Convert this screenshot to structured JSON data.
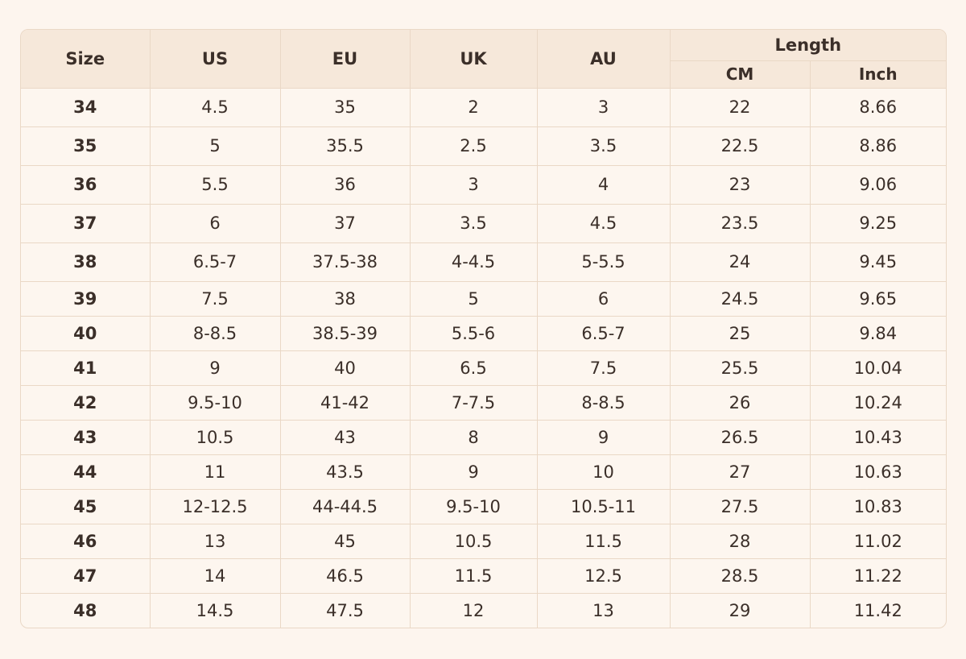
{
  "table": {
    "headers": [
      "Size",
      "US",
      "EU",
      "UK",
      "AU"
    ],
    "group": "Length",
    "subheaders": [
      "CM",
      "Inch"
    ],
    "rows": [
      [
        "34",
        "4.5",
        "35",
        "2",
        "3",
        "22",
        "8.66"
      ],
      [
        "35",
        "5",
        "35.5",
        "2.5",
        "3.5",
        "22.5",
        "8.86"
      ],
      [
        "36",
        "5.5",
        "36",
        "3",
        "4",
        "23",
        "9.06"
      ],
      [
        "37",
        "6",
        "37",
        "3.5",
        "4.5",
        "23.5",
        "9.25"
      ],
      [
        "38",
        "6.5-7",
        "37.5-38",
        "4-4.5",
        "5-5.5",
        "24",
        "9.45"
      ],
      [
        "39",
        "7.5",
        "38",
        "5",
        "6",
        "24.5",
        "9.65"
      ],
      [
        "40",
        "8-8.5",
        "38.5-39",
        "5.5-6",
        "6.5-7",
        "25",
        "9.84"
      ],
      [
        "41",
        "9",
        "40",
        "6.5",
        "7.5",
        "25.5",
        "10.04"
      ],
      [
        "42",
        "9.5-10",
        "41-42",
        "7-7.5",
        "8-8.5",
        "26",
        "10.24"
      ],
      [
        "43",
        "10.5",
        "43",
        "8",
        "9",
        "26.5",
        "10.43"
      ],
      [
        "44",
        "11",
        "43.5",
        "9",
        "10",
        "27",
        "10.63"
      ],
      [
        "45",
        "12-12.5",
        "44-44.5",
        "9.5-10",
        "10.5-11",
        "27.5",
        "10.83"
      ],
      [
        "46",
        "13",
        "45",
        "10.5",
        "11.5",
        "28",
        "11.02"
      ],
      [
        "47",
        "14",
        "46.5",
        "11.5",
        "12.5",
        "28.5",
        "11.22"
      ],
      [
        "48",
        "14.5",
        "47.5",
        "12",
        "13",
        "29",
        "11.42"
      ]
    ]
  }
}
